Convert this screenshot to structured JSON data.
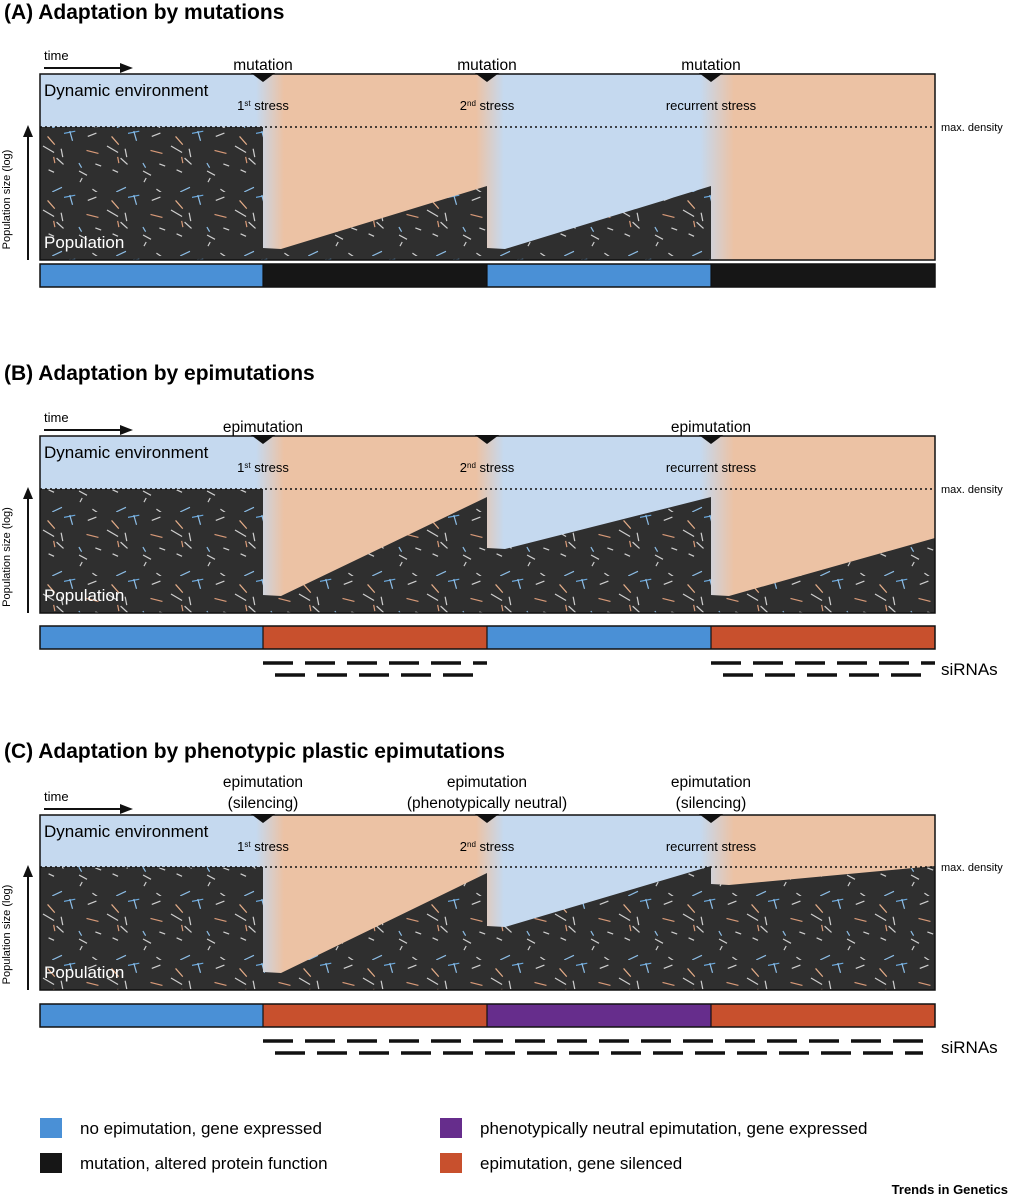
{
  "colors": {
    "env_blue": "#c5d9ef",
    "env_orange": "#ecc2a4",
    "population_dark": "#2f2f2f",
    "state_blue": "#4a90d6",
    "state_black": "#161616",
    "state_red": "#c8502d",
    "state_purple": "#662d8c"
  },
  "common": {
    "time_label": "time",
    "env_label": "Dynamic environment",
    "population_label": "Population",
    "max_density_label": "max. density",
    "yaxis_label": "Population size (log)",
    "sirnas_label": "siRNAs"
  },
  "stresses": [
    {
      "num": "1",
      "sup": "st",
      "word": " stress"
    },
    {
      "num": "2",
      "sup": "nd",
      "word": " stress"
    },
    {
      "num": "",
      "sup": "",
      "word": "recurrent stress"
    }
  ],
  "panels": [
    {
      "title": "(A)  Adaptation by mutations",
      "events": [
        {
          "lines": [
            "mutation"
          ]
        },
        {
          "lines": [
            "mutation"
          ]
        },
        {
          "lines": [
            "mutation"
          ]
        }
      ],
      "states": [
        "blue",
        "black",
        "blue",
        "black"
      ],
      "has_sirnas": false,
      "sirna_segments": []
    },
    {
      "title": "(B)  Adaptation by epimutations",
      "events": [
        {
          "lines": [
            "epimutation"
          ]
        },
        {
          "lines": []
        },
        {
          "lines": [
            "epimutation"
          ]
        }
      ],
      "states": [
        "blue",
        "red",
        "blue",
        "red"
      ],
      "has_sirnas": true,
      "sirna_segments": [
        [
          1,
          2
        ],
        [
          3,
          4
        ]
      ]
    },
    {
      "title": "(C)  Adaptation by phenotypic plastic epimutations",
      "events": [
        {
          "lines": [
            "epimutation",
            "(silencing)"
          ]
        },
        {
          "lines": [
            "epimutation",
            "(phenotypically neutral)"
          ]
        },
        {
          "lines": [
            "epimutation",
            "(silencing)"
          ]
        }
      ],
      "states": [
        "blue",
        "red",
        "purple",
        "red"
      ],
      "has_sirnas": true,
      "sirna_segments": [
        [
          1,
          4
        ]
      ]
    }
  ],
  "legend": [
    {
      "color": "#4a90d6",
      "label": "no epimutation, gene expressed"
    },
    {
      "color": "#161616",
      "label": "mutation, altered protein function"
    },
    {
      "color": "#662d8c",
      "label": "phenotypically neutral epimutation, gene expressed"
    },
    {
      "color": "#c8502d",
      "label": "epimutation, gene silenced"
    }
  ],
  "credit": "Trends in Genetics"
}
